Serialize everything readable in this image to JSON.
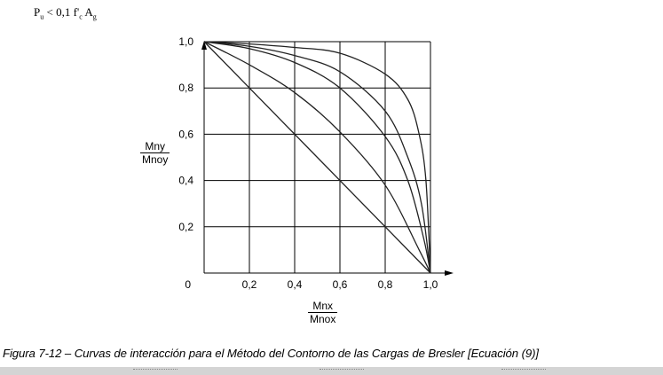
{
  "condition": {
    "p": "P",
    "p_sub": "u",
    "mid": " < 0,1 f'",
    "fc_sub": "c",
    "a": " A",
    "a_sub": "g"
  },
  "caption": "Figura 7-12 – Curvas de interacción para el Método del Contorno de las Cargas de Bresler [Ecuación (9)]",
  "chart_data": {
    "type": "line",
    "xlabel": {
      "num": "Mnx",
      "den": "Mnox"
    },
    "ylabel": {
      "num": "Mny",
      "den": "Mnoy"
    },
    "xlim": [
      0,
      1.0
    ],
    "ylim": [
      0,
      1.0
    ],
    "grid": true,
    "origin_label": "0",
    "x_ticks": [
      0.2,
      0.4,
      0.6,
      0.8,
      1.0
    ],
    "x_tick_labels": [
      "0,2",
      "0,4",
      "0,6",
      "0,8",
      "1,0"
    ],
    "y_ticks": [
      0.2,
      0.4,
      0.6,
      0.8,
      1.0
    ],
    "y_tick_labels": [
      "0,2",
      "0,4",
      "0,6",
      "0,8",
      "1,0"
    ],
    "series": [
      {
        "points": [
          [
            0,
            1
          ],
          [
            1,
            0
          ]
        ]
      },
      {
        "points": [
          [
            0,
            1
          ],
          [
            0.2,
            0.9
          ],
          [
            0.4,
            0.78
          ],
          [
            0.6,
            0.61
          ],
          [
            0.8,
            0.38
          ],
          [
            0.95,
            0.1
          ],
          [
            1,
            0
          ]
        ]
      },
      {
        "points": [
          [
            0,
            1
          ],
          [
            0.2,
            0.97
          ],
          [
            0.4,
            0.91
          ],
          [
            0.6,
            0.8
          ],
          [
            0.8,
            0.59
          ],
          [
            0.9,
            0.4
          ],
          [
            0.97,
            0.15
          ],
          [
            1,
            0
          ]
        ]
      },
      {
        "points": [
          [
            0,
            1
          ],
          [
            0.2,
            0.98
          ],
          [
            0.4,
            0.94
          ],
          [
            0.6,
            0.87
          ],
          [
            0.8,
            0.7
          ],
          [
            0.9,
            0.5
          ],
          [
            0.96,
            0.3
          ],
          [
            1,
            0
          ]
        ]
      },
      {
        "points": [
          [
            0,
            1
          ],
          [
            0.2,
            0.99
          ],
          [
            0.4,
            0.975
          ],
          [
            0.6,
            0.95
          ],
          [
            0.8,
            0.86
          ],
          [
            0.9,
            0.75
          ],
          [
            0.95,
            0.6
          ],
          [
            0.98,
            0.4
          ],
          [
            1,
            0
          ]
        ]
      }
    ]
  }
}
